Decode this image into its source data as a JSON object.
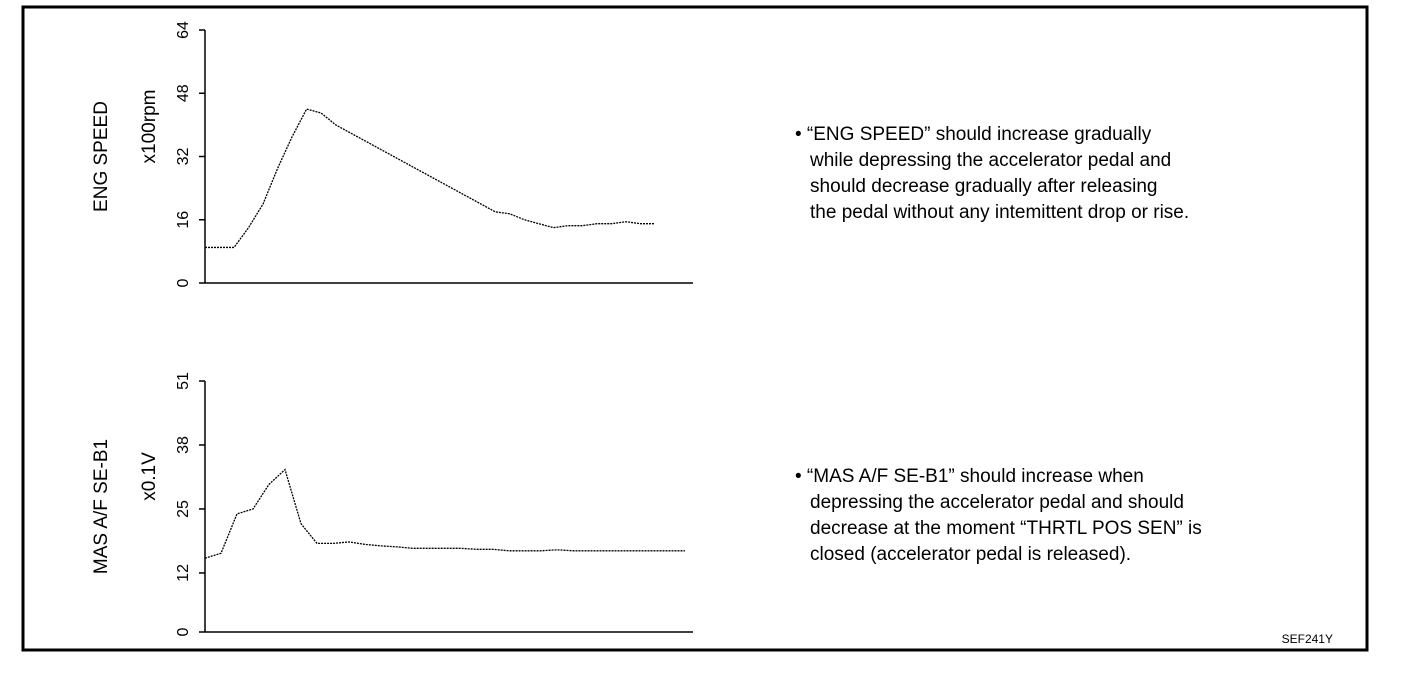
{
  "chart_data": [
    {
      "type": "line",
      "y_label": "ENG SPEED",
      "unit_label": "x100rpm",
      "ylim": [
        0,
        64
      ],
      "yticks": [
        0,
        16,
        32,
        48,
        64
      ],
      "values": [
        9,
        9,
        9,
        14,
        20,
        29,
        37,
        44,
        43,
        40,
        38,
        36,
        34,
        32,
        30,
        28,
        26,
        24,
        22,
        20,
        18,
        17.5,
        16,
        15,
        14,
        14.5,
        14.5,
        15,
        15,
        15.5,
        15,
        15
      ]
    },
    {
      "type": "line",
      "y_label": "MAS A/F SE-B1",
      "unit_label": "x0.1V",
      "ylim": [
        0,
        51
      ],
      "yticks": [
        0,
        12,
        25,
        38,
        51
      ],
      "values": [
        15,
        16,
        24,
        25,
        30,
        33,
        22,
        18,
        18,
        18.3,
        17.8,
        17.5,
        17.3,
        17,
        17,
        17,
        17,
        16.8,
        16.8,
        16.5,
        16.5,
        16.5,
        16.7,
        16.5,
        16.5,
        16.5,
        16.5,
        16.5,
        16.5,
        16.5,
        16.5
      ]
    }
  ],
  "notes": [
    [
      "• “ENG SPEED” should increase gradually",
      "while depressing the accelerator pedal and",
      "should decrease gradually after releasing",
      "the pedal without any intemittent drop or rise."
    ],
    [
      "• “MAS A/F SE-B1” should increase when",
      "depressing the accelerator pedal and  should",
      "decrease at the moment “THRTL POS SEN” is",
      "closed (accelerator pedal is released)."
    ]
  ],
  "figure_code": "SEF241Y"
}
